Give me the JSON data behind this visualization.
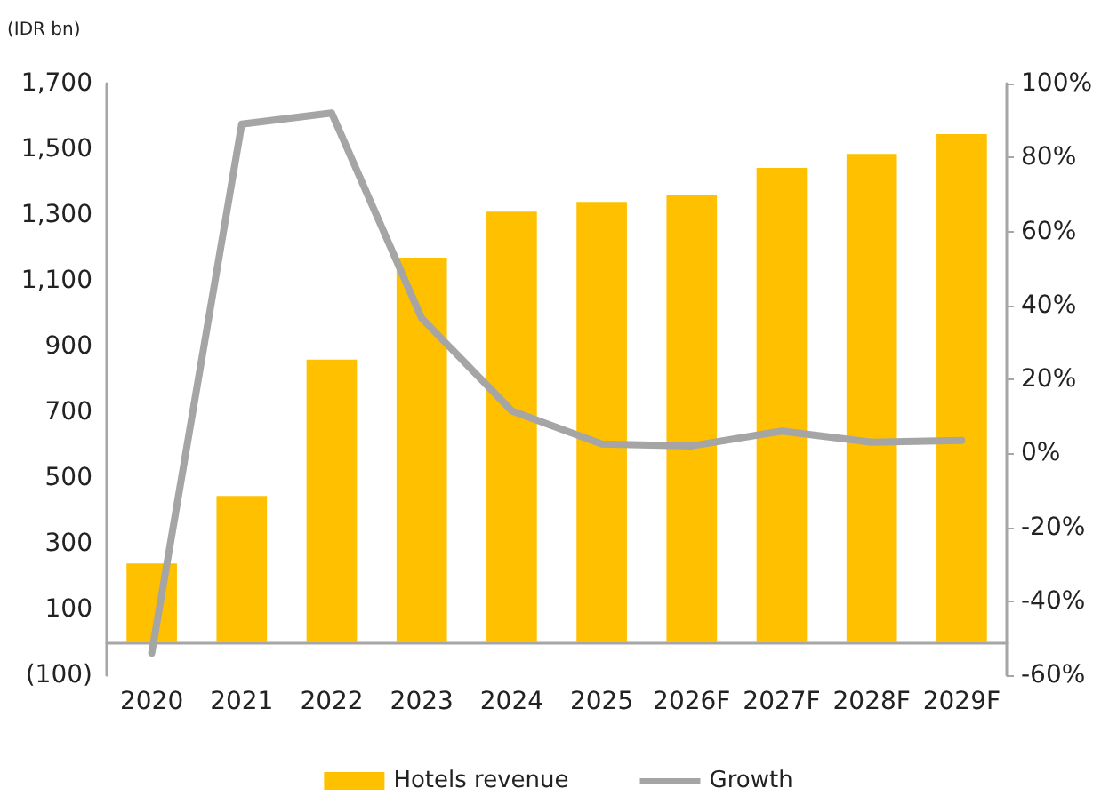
{
  "chart_data": {
    "type": "bar",
    "ylabel": "(IDR bn)",
    "categories": [
      "2020",
      "2021",
      "2022",
      "2023",
      "2024",
      "2025",
      "2026F",
      "2027F",
      "2028F",
      "2029F"
    ],
    "series": [
      {
        "name": "Hotels revenue",
        "color": "#ffc000",
        "values": [
          240,
          445,
          860,
          1170,
          1310,
          1340,
          1362,
          1443,
          1486,
          1546
        ]
      },
      {
        "name": "Growth",
        "type": "line",
        "axis": "y2",
        "color": "#a5a5a5",
        "values": [
          -54,
          89,
          92,
          36.5,
          11.5,
          2.5,
          2,
          6,
          3,
          3.5
        ]
      }
    ],
    "ylim": [
      -100,
      1700
    ],
    "yticks": [
      {
        "value": -100,
        "label": "(100)"
      },
      100,
      300,
      500,
      700,
      900,
      {
        "value": 1100,
        "label": "1,100"
      },
      {
        "value": 1300,
        "label": "1,300"
      },
      {
        "value": 1500,
        "label": "1,500"
      },
      {
        "value": 1700,
        "label": "1,700"
      }
    ],
    "y2lim": [
      -60,
      100
    ],
    "y2ticks": [
      {
        "value": -60,
        "label": "-60%"
      },
      {
        "value": -40,
        "label": "-40%"
      },
      {
        "value": -20,
        "label": "-20%"
      },
      {
        "value": 0,
        "label": "0%"
      },
      {
        "value": 20,
        "label": "20%"
      },
      {
        "value": 40,
        "label": "40%"
      },
      {
        "value": 60,
        "label": "60%"
      },
      {
        "value": 80,
        "label": "80%"
      },
      {
        "value": 100,
        "label": "100%"
      }
    ],
    "grid": false,
    "legend": "bottom",
    "marker": "none",
    "line_style": "solid"
  }
}
